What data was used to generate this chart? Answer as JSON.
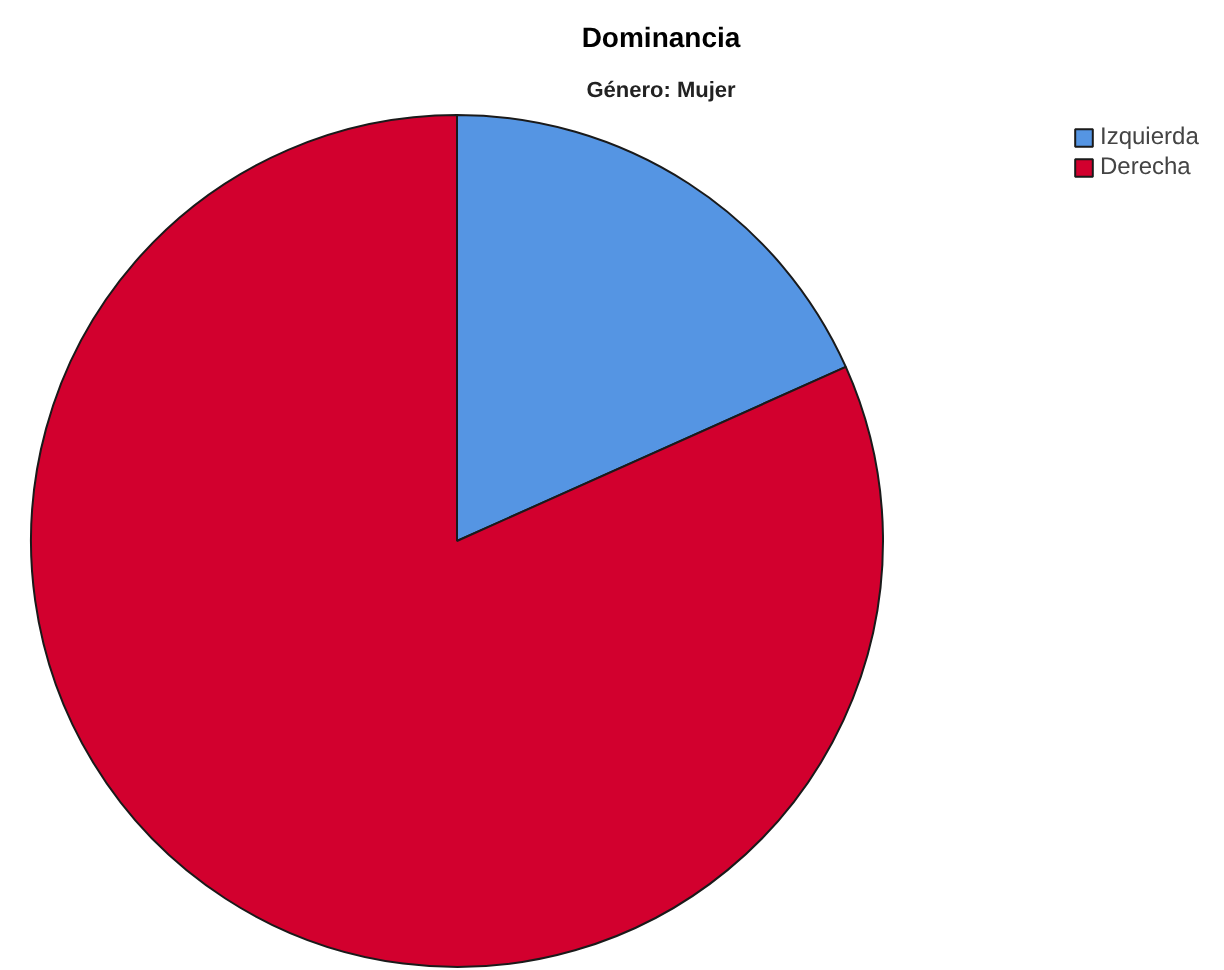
{
  "chart_data": {
    "type": "pie",
    "title": "Dominancia",
    "subtitle": "Género: Mujer",
    "categories": [
      "Izquierda",
      "Derecha"
    ],
    "values": [
      18.3,
      81.7
    ],
    "colors": [
      "#5595e3",
      "#d2002e"
    ],
    "legend": "top right"
  }
}
